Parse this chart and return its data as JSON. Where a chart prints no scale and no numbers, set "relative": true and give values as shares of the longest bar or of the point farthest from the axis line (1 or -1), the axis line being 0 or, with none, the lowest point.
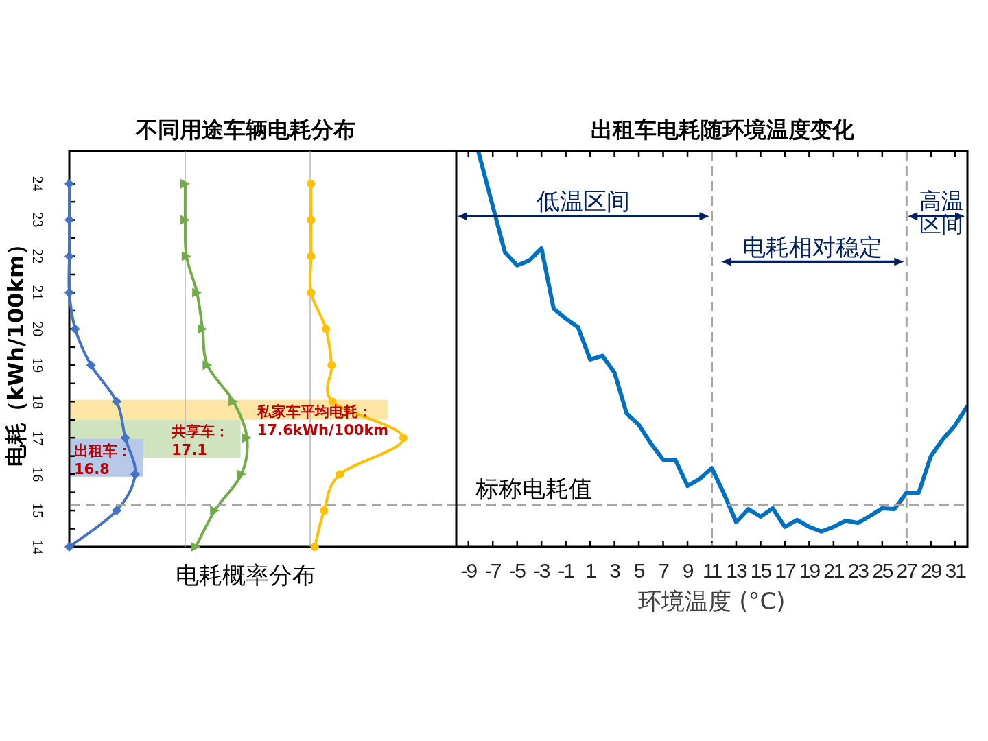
{
  "chart_data": [
    {
      "type": "line",
      "ylabel": "电耗（kWh/100km）",
      "orientation": "horizontal",
      "relative": true,
      "tick_labels": "y",
      "x": [
        14,
        15,
        16,
        17,
        18,
        19,
        20,
        21,
        22,
        23,
        24
      ],
      "ylim": [
        14,
        24.9
      ],
      "yticks": [
        14,
        {
          "value": 14.5,
          "label": null
        },
        15,
        {
          "value": 15.5,
          "label": null
        },
        16,
        {
          "value": 16.5,
          "label": null
        },
        17,
        {
          "value": 17.5,
          "label": null
        },
        18,
        {
          "value": 18.5,
          "label": null
        },
        19,
        {
          "value": 19.5,
          "label": null
        },
        20,
        {
          "value": 20.5,
          "label": null
        },
        21,
        {
          "value": 21.5,
          "label": null
        },
        22,
        {
          "value": 22.5,
          "label": null
        },
        23,
        {
          "value": 23.5,
          "label": null
        },
        24
      ],
      "series": [
        {
          "color": "#4472c4",
          "marker": "diamond",
          "values": [
            0,
            0.72,
            1,
            0.85,
            0.72,
            0.33,
            0.09,
            0,
            0,
            0,
            0
          ]
        }
      ],
      "bands": [
        {
          "axis": "y",
          "from": 15.93,
          "to": 16.97,
          "label": "出租车：16.8",
          "color": "#b6c9e9"
        }
      ],
      "ref_lines": [
        {
          "axis": "y",
          "value": 15.15,
          "color": "#a6a6a6",
          "line_style": "dashed"
        }
      ]
    },
    {
      "type": "line",
      "title": "不同用途车辆电耗分布",
      "xlabel": "电耗概率分布",
      "orientation": "horizontal",
      "relative": true,
      "tick_labels": false,
      "x": [
        14,
        15,
        16,
        17,
        18,
        19,
        20,
        21,
        22,
        23,
        24
      ],
      "ylim": [
        14,
        24.9
      ],
      "series": [
        {
          "color": "#70ad47",
          "marker": "triangle",
          "values": [
            0.17,
            0.48,
            0.91,
            1,
            0.78,
            0.36,
            0.28,
            0.19,
            0.02,
            0,
            0
          ]
        }
      ],
      "bands": [
        {
          "axis": "y",
          "from": 16.45,
          "to": 17.5,
          "label": "共享车：17.1",
          "color": "#cfe3bf"
        }
      ],
      "ref_lines": [
        {
          "axis": "y",
          "value": 15.15,
          "color": "#a6a6a6",
          "line_style": "dashed"
        }
      ]
    },
    {
      "type": "line",
      "orientation": "horizontal",
      "relative": true,
      "tick_labels": false,
      "x": [
        14,
        15,
        16,
        17,
        18,
        19,
        20,
        21,
        22,
        23,
        24
      ],
      "ylim": [
        14,
        24.9
      ],
      "series": [
        {
          "color": "#ffc000",
          "marker": "circle",
          "values": [
            0.05,
            0.15,
            0.32,
            1,
            0.24,
            0.23,
            0.17,
            0.01,
            0.01,
            0.01,
            0.01
          ]
        }
      ],
      "bands": [
        {
          "axis": "y",
          "from": 17.5,
          "to": 18.05,
          "label": "私家车平均电耗：17.6kWh/100km",
          "color": "#fde6a3"
        }
      ],
      "ref_lines": [
        {
          "axis": "y",
          "value": 15.15,
          "color": "#a6a6a6",
          "line_style": "dashed"
        }
      ]
    },
    {
      "type": "line",
      "title": "出租车电耗随环境温度变化",
      "xlabel": "环境温度 (°C)",
      "tick_labels": "x",
      "color": "#0070c0",
      "xlim": [
        -10,
        32
      ],
      "ylim": [
        14,
        24.9
      ],
      "xticks": [
        -9,
        -7,
        -5,
        -3,
        -1,
        1,
        3,
        5,
        7,
        9,
        11,
        13,
        15,
        17,
        19,
        21,
        23,
        25,
        27,
        29,
        31
      ],
      "x": [
        -8.2,
        -6,
        -5,
        -4,
        -3,
        -2,
        -1,
        0,
        1,
        2,
        3,
        4,
        5,
        6,
        7,
        8,
        9,
        10,
        11,
        12,
        13,
        14,
        15,
        16,
        17,
        18,
        19,
        20,
        21,
        22,
        23,
        24,
        25,
        26,
        27,
        28,
        29,
        30,
        31,
        32
      ],
      "values": [
        24.9,
        22.11,
        21.75,
        21.88,
        22.22,
        20.56,
        20.28,
        20.05,
        19.16,
        19.26,
        18.8,
        17.67,
        17.36,
        16.84,
        16.4,
        16.4,
        15.68,
        15.87,
        16.17,
        15.46,
        14.68,
        15.04,
        14.83,
        15.06,
        14.55,
        14.74,
        14.55,
        14.42,
        14.55,
        14.72,
        14.66,
        14.85,
        15.06,
        15.04,
        15.49,
        15.49,
        16.5,
        16.97,
        17.35,
        17.88
      ],
      "ref_lines": [
        {
          "axis": "x",
          "value": 11,
          "color": "#a6a6a6",
          "line_style": "dashed"
        },
        {
          "axis": "x",
          "value": 27,
          "color": "#a6a6a6",
          "line_style": "dashed"
        },
        {
          "axis": "y",
          "value": 15.15,
          "label": "标称电耗值",
          "color": "#a6a6a6",
          "line_style": "dashed"
        }
      ],
      "annotations": [
        "低温区间",
        "电耗相对稳定",
        "高温区间"
      ]
    }
  ]
}
